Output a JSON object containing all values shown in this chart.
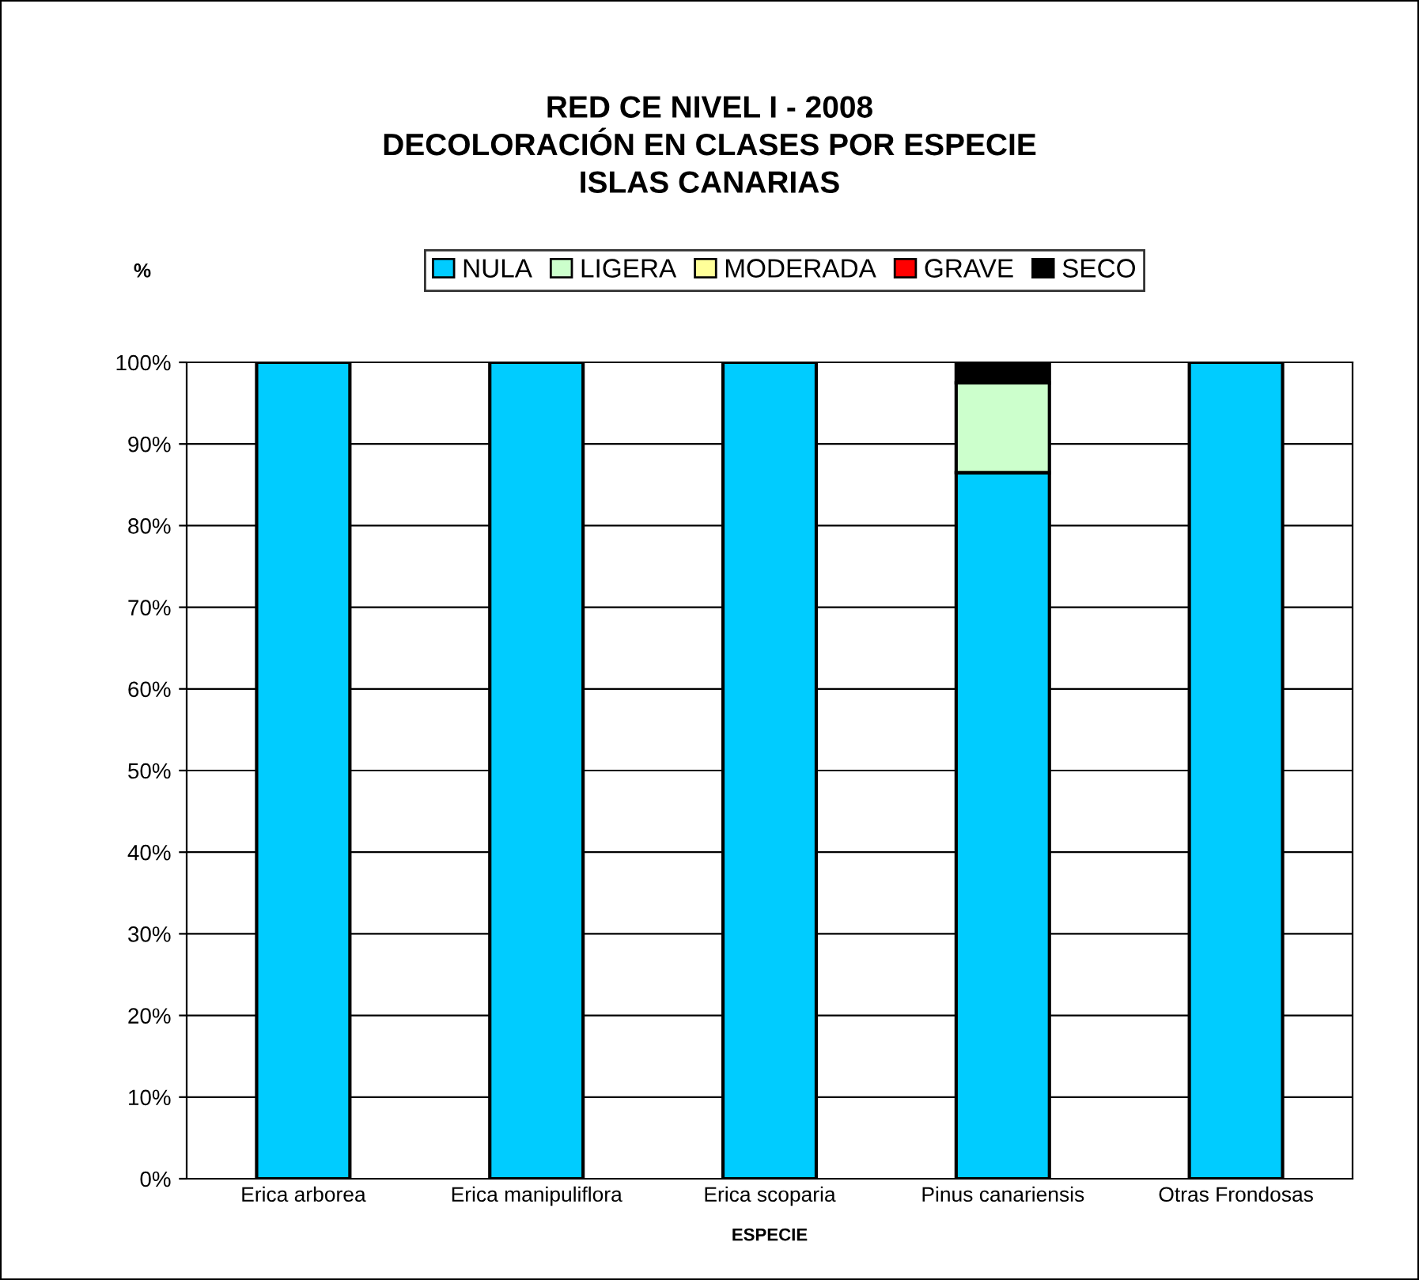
{
  "chart_data": {
    "type": "bar",
    "stacked": true,
    "title": "RED CE NIVEL I - 2008\nDECOLORACIÓN EN CLASES POR ESPECIE\nISLAS CANARIAS",
    "ylabel": "%",
    "xlabel": "ESPECIE",
    "categories": [
      "Erica arborea",
      "Erica manipuliflora",
      "Erica scoparia",
      "Pinus canariensis",
      "Otras Frondosas"
    ],
    "series": [
      {
        "name": "NULA",
        "color": "#00ccff",
        "values": [
          100,
          100,
          100,
          86.5,
          100
        ]
      },
      {
        "name": "LIGERA",
        "color": "#ccffcc",
        "values": [
          0,
          0,
          0,
          11,
          0
        ]
      },
      {
        "name": "MODERADA",
        "color": "#ffff99",
        "values": [
          0,
          0,
          0,
          0,
          0
        ]
      },
      {
        "name": "GRAVE",
        "color": "#ff0000",
        "values": [
          0,
          0,
          0,
          0,
          0
        ]
      },
      {
        "name": "SECO",
        "color": "#000000",
        "values": [
          0,
          0,
          0,
          2.5,
          0
        ]
      }
    ],
    "ylim": [
      0,
      100
    ],
    "yticks": [
      {
        "value": 0,
        "label": "0%"
      },
      {
        "value": 10,
        "label": "10%"
      },
      {
        "value": 20,
        "label": "20%"
      },
      {
        "value": 30,
        "label": "30%"
      },
      {
        "value": 40,
        "label": "40%"
      },
      {
        "value": 50,
        "label": "50%"
      },
      {
        "value": 60,
        "label": "60%"
      },
      {
        "value": 70,
        "label": "70%"
      },
      {
        "value": 80,
        "label": "80%"
      },
      {
        "value": 90,
        "label": "90%"
      },
      {
        "value": 100,
        "label": "100%"
      }
    ],
    "grid": "y",
    "legend": "top"
  }
}
